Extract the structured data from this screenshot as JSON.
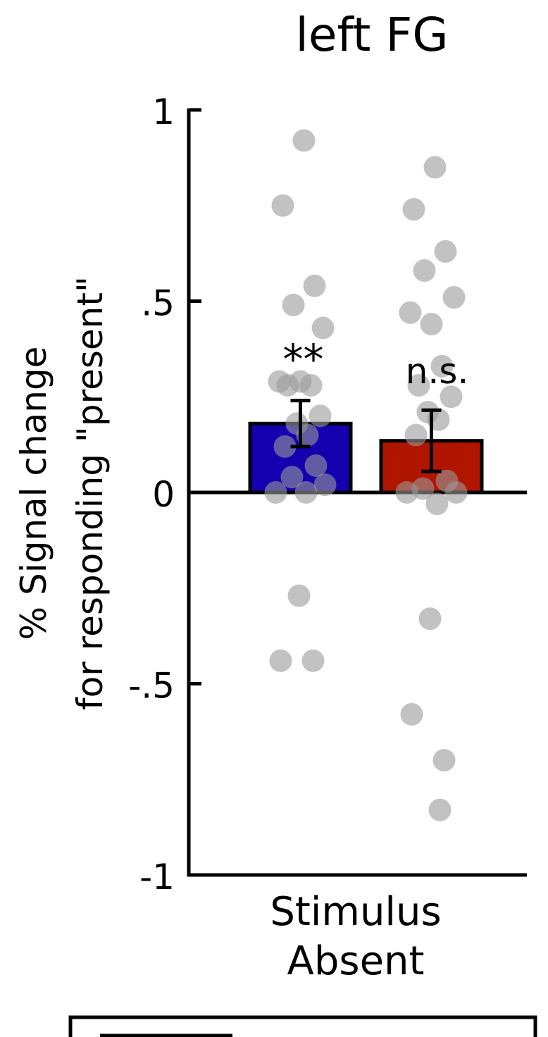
{
  "chart_data": {
    "type": "bar",
    "title": "left FG",
    "ylabel_line1": "% Signal change",
    "ylabel_line2": "for responding \"present\"",
    "xlabel_line1": "Stimulus",
    "xlabel_line2": "Absent",
    "ylim": [
      -1,
      1
    ],
    "yticks": [
      {
        "value": 1,
        "label": "1"
      },
      {
        "value": 0.5,
        "label": ".5"
      },
      {
        "value": 0,
        "label": "0"
      },
      {
        "value": -0.5,
        "label": "-.5"
      },
      {
        "value": -1,
        "label": "-1"
      }
    ],
    "grid": false,
    "bars": [
      {
        "color": "#1500b0",
        "value": 0.18,
        "error_low": 0.12,
        "error_high": 0.24,
        "annotation": "**",
        "points": [
          0.92,
          0.75,
          0.54,
          0.49,
          0.43,
          0.29,
          0.29,
          0.28,
          0.28,
          0.2,
          0.18,
          0.15,
          0.12,
          0.07,
          0.04,
          0.02,
          0.0,
          0.0,
          -0.27,
          -0.44,
          -0.44
        ]
      },
      {
        "color": "#b01500",
        "value": 0.135,
        "error_low": 0.055,
        "error_high": 0.215,
        "annotation": "n.s.",
        "points": [
          0.85,
          0.74,
          0.63,
          0.58,
          0.51,
          0.47,
          0.44,
          0.33,
          0.28,
          0.25,
          0.21,
          0.19,
          0.15,
          0.03,
          0.01,
          0.0,
          0.0,
          -0.03,
          -0.33,
          -0.58,
          -0.7,
          -0.83
        ]
      }
    ]
  }
}
